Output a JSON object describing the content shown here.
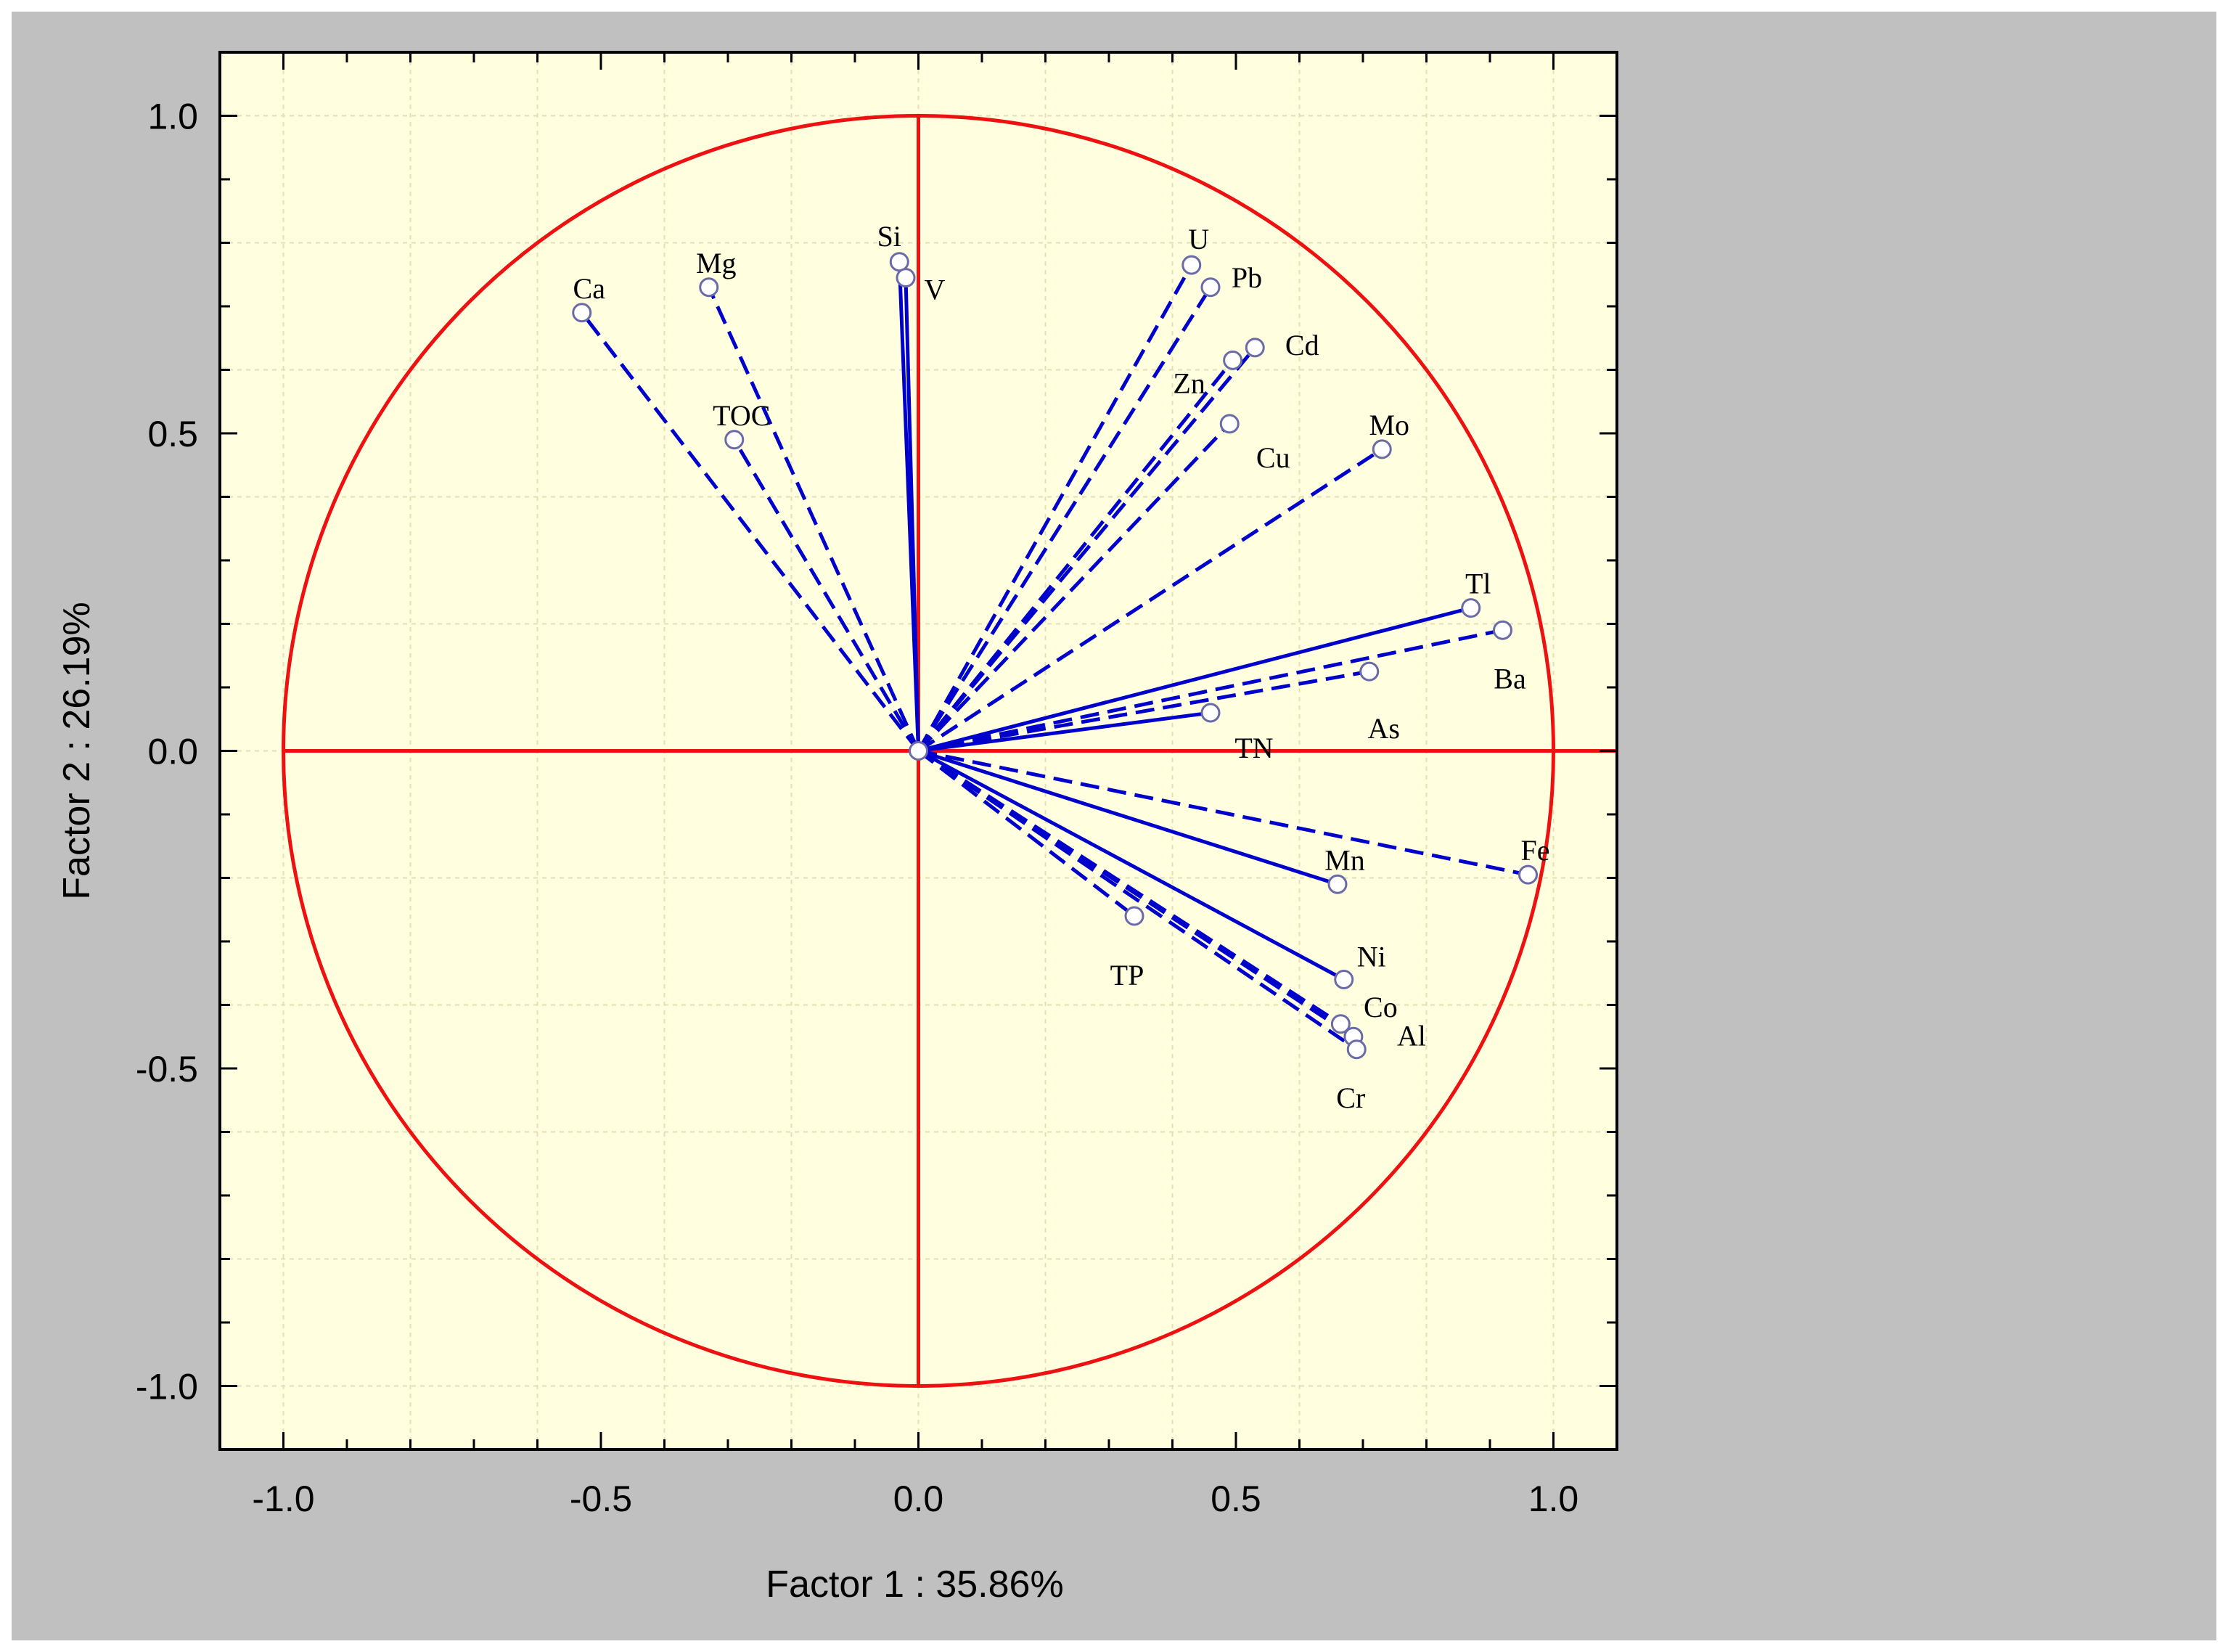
{
  "chart_data": {
    "type": "scatter",
    "subtype": "pca-loadings-circle",
    "title": "",
    "xlabel": "Factor 1 : 35.86%",
    "ylabel": "Factor 2 : 26.19%",
    "xlim": [
      -1.1,
      1.1
    ],
    "ylim": [
      -1.1,
      1.1
    ],
    "x_ticks": [
      {
        "v": -1.0,
        "label": "-1.0"
      },
      {
        "v": -0.5,
        "label": "-0.5"
      },
      {
        "v": 0.0,
        "label": "0.0"
      },
      {
        "v": 0.5,
        "label": "0.5"
      },
      {
        "v": 1.0,
        "label": "1.0"
      }
    ],
    "y_ticks": [
      {
        "v": 1.0,
        "label": "1.0"
      },
      {
        "v": 0.5,
        "label": "0.5"
      },
      {
        "v": 0.0,
        "label": "0.0"
      },
      {
        "v": -0.5,
        "label": "-0.5"
      },
      {
        "v": -1.0,
        "label": "-1.0"
      }
    ],
    "grid": true,
    "unit_circle": true,
    "colors": {
      "outer_background": "#c0c0c0",
      "plot_background": "#ffffe0",
      "vectors": "#0000cc",
      "circle_and_axes": "#ee1111",
      "markers": "#6a6aa8"
    },
    "points": [
      {
        "name": "Ca",
        "x": -0.53,
        "y": 0.69,
        "dash": true
      },
      {
        "name": "Mg",
        "x": -0.33,
        "y": 0.73,
        "dash": true
      },
      {
        "name": "TOC",
        "x": -0.29,
        "y": 0.49,
        "dash": true
      },
      {
        "name": "Si",
        "x": -0.03,
        "y": 0.77,
        "dash": false
      },
      {
        "name": "V",
        "x": -0.02,
        "y": 0.745,
        "dash": false
      },
      {
        "name": "U",
        "x": 0.43,
        "y": 0.765,
        "dash": true
      },
      {
        "name": "Pb",
        "x": 0.46,
        "y": 0.73,
        "dash": true
      },
      {
        "name": "Cd",
        "x": 0.53,
        "y": 0.635,
        "dash": true
      },
      {
        "name": "Zn",
        "x": 0.495,
        "y": 0.615,
        "dash": true
      },
      {
        "name": "Cu",
        "x": 0.49,
        "y": 0.515,
        "dash": true
      },
      {
        "name": "Mo",
        "x": 0.73,
        "y": 0.475,
        "dash": true
      },
      {
        "name": "Tl",
        "x": 0.87,
        "y": 0.225,
        "dash": false
      },
      {
        "name": "Ba",
        "x": 0.92,
        "y": 0.19,
        "dash": true
      },
      {
        "name": "As",
        "x": 0.71,
        "y": 0.125,
        "dash": true
      },
      {
        "name": "TN",
        "x": 0.46,
        "y": 0.06,
        "dash": false
      },
      {
        "name": "Mn",
        "x": 0.66,
        "y": -0.21,
        "dash": false
      },
      {
        "name": "Fe",
        "x": 0.96,
        "y": -0.195,
        "dash": true
      },
      {
        "name": "TP",
        "x": 0.34,
        "y": -0.26,
        "dash": true
      },
      {
        "name": "Ni",
        "x": 0.67,
        "y": -0.36,
        "dash": false
      },
      {
        "name": "Co",
        "x": 0.665,
        "y": -0.43,
        "dash": true
      },
      {
        "name": "Al",
        "x": 0.685,
        "y": -0.45,
        "dash": true
      },
      {
        "name": "Cr",
        "x": 0.69,
        "y": -0.47,
        "dash": true
      }
    ]
  }
}
